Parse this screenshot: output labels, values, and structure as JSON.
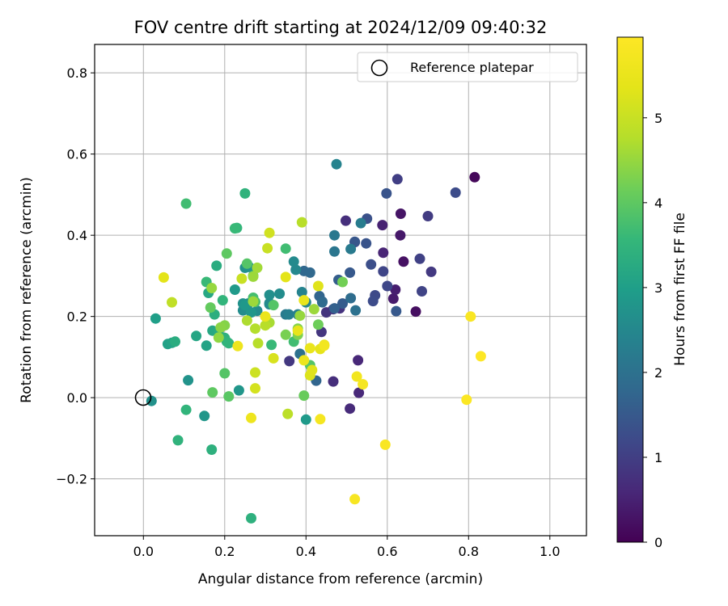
{
  "chart_data": {
    "type": "scatter",
    "title": "FOV centre drift starting at 2024/12/09 09:40:32",
    "xlabel": "Angular distance from reference (arcmin)",
    "ylabel": "Rotation from reference (arcmin)",
    "xlim": [
      -0.12,
      1.09
    ],
    "ylim": [
      -0.34,
      0.87
    ],
    "xticks": [
      0.0,
      0.2,
      0.4,
      0.6,
      0.8,
      1.0
    ],
    "xtick_labels": [
      "0.0",
      "0.2",
      "0.4",
      "0.6",
      "0.8",
      "1.0"
    ],
    "yticks": [
      -0.2,
      0.0,
      0.2,
      0.4,
      0.6,
      0.8
    ],
    "ytick_labels": [
      "−0.2",
      "0.0",
      "0.2",
      "0.4",
      "0.6",
      "0.8"
    ],
    "grid": true,
    "legend": {
      "position": "top-right",
      "entries": [
        "Reference platepar"
      ]
    },
    "reference_point": {
      "x": 0.0,
      "y": 0.0
    },
    "colorbar": {
      "label": "Hours from first FF file",
      "range": [
        0,
        5.95
      ],
      "ticks": [
        0,
        1,
        2,
        3,
        4,
        5
      ],
      "tick_labels": [
        "0",
        "1",
        "2",
        "3",
        "4",
        "5"
      ],
      "colormap": "viridis"
    },
    "series": [
      {
        "points": [
          [
            0.815,
            0.543,
            0.1
          ],
          [
            0.67,
            0.212,
            0.2
          ],
          [
            0.64,
            0.335,
            0.25
          ],
          [
            0.633,
            0.453,
            0.3
          ],
          [
            0.632,
            0.4,
            0.35
          ],
          [
            0.615,
            0.244,
            0.4
          ],
          [
            0.62,
            0.266,
            0.45
          ],
          [
            0.588,
            0.425,
            0.5
          ],
          [
            0.59,
            0.357,
            0.55
          ],
          [
            0.528,
            0.092,
            0.6
          ],
          [
            0.53,
            0.012,
            0.62
          ],
          [
            0.508,
            -0.027,
            0.65
          ],
          [
            0.467,
            0.04,
            0.7
          ],
          [
            0.498,
            0.436,
            0.72
          ],
          [
            0.52,
            0.383,
            0.75
          ],
          [
            0.467,
            0.218,
            0.78
          ],
          [
            0.483,
            0.22,
            0.8
          ],
          [
            0.45,
            0.21,
            0.82
          ],
          [
            0.438,
            0.162,
            0.85
          ],
          [
            0.359,
            0.09,
            0.88
          ],
          [
            0.708,
            0.31,
            0.9
          ],
          [
            0.7,
            0.447,
            0.95
          ],
          [
            0.625,
            0.538,
            1.0
          ],
          [
            0.68,
            0.342,
            1.05
          ],
          [
            0.685,
            0.262,
            1.1
          ],
          [
            0.59,
            0.311,
            1.12
          ],
          [
            0.6,
            0.275,
            1.15
          ],
          [
            0.57,
            0.252,
            1.2
          ],
          [
            0.565,
            0.238,
            1.25
          ],
          [
            0.56,
            0.328,
            1.3
          ],
          [
            0.55,
            0.441,
            1.35
          ],
          [
            0.548,
            0.38,
            1.4
          ],
          [
            0.52,
            0.384,
            1.45
          ],
          [
            0.508,
            0.308,
            1.5
          ],
          [
            0.49,
            0.232,
            1.55
          ],
          [
            0.48,
            0.29,
            1.6
          ],
          [
            0.47,
            0.22,
            1.65
          ],
          [
            0.44,
            0.237,
            1.7
          ],
          [
            0.433,
            0.25,
            1.72
          ],
          [
            0.425,
            0.042,
            1.75
          ],
          [
            0.395,
            0.312,
            1.78
          ],
          [
            0.41,
            0.308,
            1.8
          ],
          [
            0.44,
            0.235,
            1.85
          ],
          [
            0.768,
            0.505,
            1.25
          ],
          [
            0.598,
            0.503,
            1.4
          ],
          [
            0.622,
            0.213,
            1.5
          ],
          [
            0.51,
            0.245,
            1.9
          ],
          [
            0.522,
            0.215,
            2.0
          ],
          [
            0.47,
            0.36,
            2.1
          ],
          [
            0.47,
            0.4,
            2.15
          ],
          [
            0.51,
            0.366,
            2.2
          ],
          [
            0.535,
            0.43,
            2.25
          ],
          [
            0.475,
            0.575,
            2.4
          ],
          [
            0.385,
            0.108,
            2.0
          ],
          [
            0.35,
            0.205,
            2.2
          ],
          [
            0.358,
            0.205,
            2.3
          ],
          [
            0.38,
            0.205,
            2.35
          ],
          [
            0.39,
            0.26,
            2.4
          ],
          [
            0.4,
            0.235,
            2.45
          ],
          [
            0.375,
            0.315,
            2.5
          ],
          [
            0.37,
            0.335,
            2.55
          ],
          [
            0.31,
            0.23,
            2.5
          ],
          [
            0.31,
            0.233,
            2.55
          ],
          [
            0.335,
            0.256,
            2.6
          ],
          [
            0.31,
            0.253,
            2.65
          ],
          [
            0.28,
            0.214,
            2.6
          ],
          [
            0.245,
            0.215,
            2.6
          ],
          [
            0.258,
            0.232,
            2.65
          ],
          [
            0.245,
            0.232,
            2.7
          ],
          [
            0.25,
            0.32,
            2.7
          ],
          [
            0.26,
            0.322,
            2.75
          ],
          [
            0.265,
            0.21,
            2.8
          ],
          [
            0.25,
            0.228,
            2.85
          ],
          [
            0.225,
            0.266,
            2.9
          ],
          [
            0.235,
            0.018,
            2.8
          ],
          [
            0.02,
            -0.008,
            2.7
          ],
          [
            0.11,
            0.043,
            2.75
          ],
          [
            0.15,
            -0.045,
            2.8
          ],
          [
            0.4,
            -0.054,
            2.9
          ],
          [
            0.03,
            0.195,
            3.0
          ],
          [
            0.06,
            0.132,
            3.05
          ],
          [
            0.07,
            0.135,
            3.1
          ],
          [
            0.155,
            0.128,
            3.1
          ],
          [
            0.13,
            0.152,
            3.15
          ],
          [
            0.16,
            0.258,
            3.2
          ],
          [
            0.17,
            0.165,
            3.2
          ],
          [
            0.185,
            0.163,
            3.25
          ],
          [
            0.18,
            0.325,
            3.3
          ],
          [
            0.175,
            0.205,
            3.35
          ],
          [
            0.2,
            0.147,
            3.4
          ],
          [
            0.205,
            0.138,
            3.45
          ],
          [
            0.21,
            0.134,
            3.5
          ],
          [
            0.195,
            0.24,
            3.5
          ],
          [
            0.23,
            0.418,
            3.55
          ],
          [
            0.225,
            0.417,
            3.6
          ],
          [
            0.155,
            0.285,
            3.6
          ],
          [
            0.315,
            0.13,
            3.6
          ],
          [
            0.35,
            0.367,
            3.7
          ],
          [
            0.37,
            0.138,
            3.7
          ],
          [
            0.105,
            -0.03,
            3.5
          ],
          [
            0.085,
            -0.105,
            3.45
          ],
          [
            0.168,
            -0.128,
            3.4
          ],
          [
            0.265,
            -0.297,
            3.4
          ],
          [
            0.25,
            0.503,
            3.45
          ],
          [
            0.105,
            0.478,
            3.7
          ],
          [
            0.078,
            0.138,
            3.3
          ],
          [
            0.27,
            0.246,
            3.75
          ],
          [
            0.275,
            0.236,
            3.8
          ],
          [
            0.27,
            0.3,
            3.85
          ],
          [
            0.255,
            0.33,
            3.9
          ],
          [
            0.32,
            0.228,
            3.9
          ],
          [
            0.41,
            0.08,
            3.9
          ],
          [
            0.2,
            0.06,
            3.9
          ],
          [
            0.21,
            0.003,
            3.95
          ],
          [
            0.17,
            0.013,
            4.0
          ],
          [
            0.205,
            0.355,
            4.0
          ],
          [
            0.165,
            0.222,
            4.05
          ],
          [
            0.395,
            0.005,
            4.1
          ],
          [
            0.43,
            0.18,
            4.15
          ],
          [
            0.49,
            0.285,
            4.2
          ],
          [
            0.35,
            0.155,
            4.25
          ],
          [
            0.38,
            0.155,
            4.3
          ],
          [
            0.38,
            0.17,
            4.35
          ],
          [
            0.2,
            0.178,
            4.35
          ],
          [
            0.19,
            0.173,
            4.4
          ],
          [
            0.185,
            0.148,
            4.45
          ],
          [
            0.168,
            0.27,
            4.5
          ],
          [
            0.385,
            0.202,
            4.5
          ],
          [
            0.42,
            0.218,
            4.55
          ],
          [
            0.27,
            0.237,
            4.55
          ],
          [
            0.27,
            0.298,
            4.55
          ],
          [
            0.28,
            0.32,
            4.6
          ],
          [
            0.31,
            0.185,
            4.65
          ],
          [
            0.255,
            0.19,
            4.7
          ],
          [
            0.275,
            0.17,
            4.75
          ],
          [
            0.282,
            0.134,
            4.8
          ],
          [
            0.3,
            0.178,
            4.8
          ],
          [
            0.39,
            0.432,
            4.8
          ],
          [
            0.355,
            -0.04,
            4.85
          ],
          [
            0.07,
            0.235,
            4.9
          ],
          [
            0.305,
            0.368,
            5.0
          ],
          [
            0.242,
            0.293,
            5.0
          ],
          [
            0.275,
            0.062,
            5.05
          ],
          [
            0.31,
            0.406,
            5.1
          ],
          [
            0.275,
            0.023,
            5.15
          ],
          [
            0.32,
            0.097,
            5.2
          ],
          [
            0.41,
            0.055,
            5.25
          ],
          [
            0.415,
            0.068,
            5.3
          ],
          [
            0.43,
            0.275,
            5.3
          ],
          [
            0.35,
            0.297,
            5.35
          ],
          [
            0.05,
            0.296,
            5.35
          ],
          [
            0.435,
            0.12,
            5.4
          ],
          [
            0.445,
            0.13,
            5.45
          ],
          [
            0.38,
            0.165,
            5.45
          ],
          [
            0.395,
            0.24,
            5.5
          ],
          [
            0.41,
            0.122,
            5.5
          ],
          [
            0.395,
            0.092,
            5.55
          ],
          [
            0.232,
            0.127,
            5.6
          ],
          [
            0.265,
            -0.05,
            5.6
          ],
          [
            0.3,
            0.2,
            5.55
          ],
          [
            0.445,
            0.128,
            5.7
          ],
          [
            0.435,
            -0.053,
            5.75
          ],
          [
            0.525,
            0.052,
            5.7
          ],
          [
            0.54,
            0.033,
            5.75
          ],
          [
            0.595,
            -0.116,
            5.85
          ],
          [
            0.52,
            -0.25,
            5.8
          ],
          [
            0.805,
            0.2,
            5.85
          ],
          [
            0.795,
            -0.005,
            5.9
          ],
          [
            0.83,
            0.102,
            5.95
          ]
        ]
      }
    ]
  }
}
